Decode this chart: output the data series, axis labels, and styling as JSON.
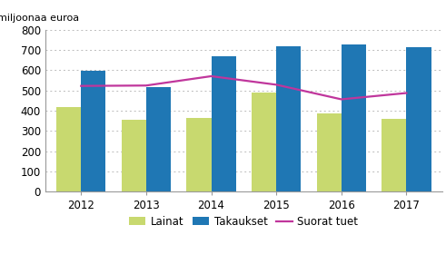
{
  "years": [
    2012,
    2013,
    2014,
    2015,
    2016,
    2017
  ],
  "lainat": [
    420,
    355,
    362,
    488,
    388,
    358
  ],
  "takaukset": [
    595,
    517,
    668,
    718,
    728,
    712
  ],
  "suorat_tuet": [
    522,
    524,
    570,
    528,
    456,
    487
  ],
  "lainat_color": "#c8d96f",
  "takaukset_color": "#1f77b4",
  "suorat_tuet_color": "#c0369c",
  "ylabel": "miljoonaa euroa",
  "ylim": [
    0,
    800
  ],
  "yticks": [
    0,
    100,
    200,
    300,
    400,
    500,
    600,
    700,
    800
  ],
  "legend_labels": [
    "Lainat",
    "Takaukset",
    "Suorat tuet"
  ],
  "background_color": "#ffffff",
  "grid_color": "#bbbbbb",
  "bar_width": 0.38
}
